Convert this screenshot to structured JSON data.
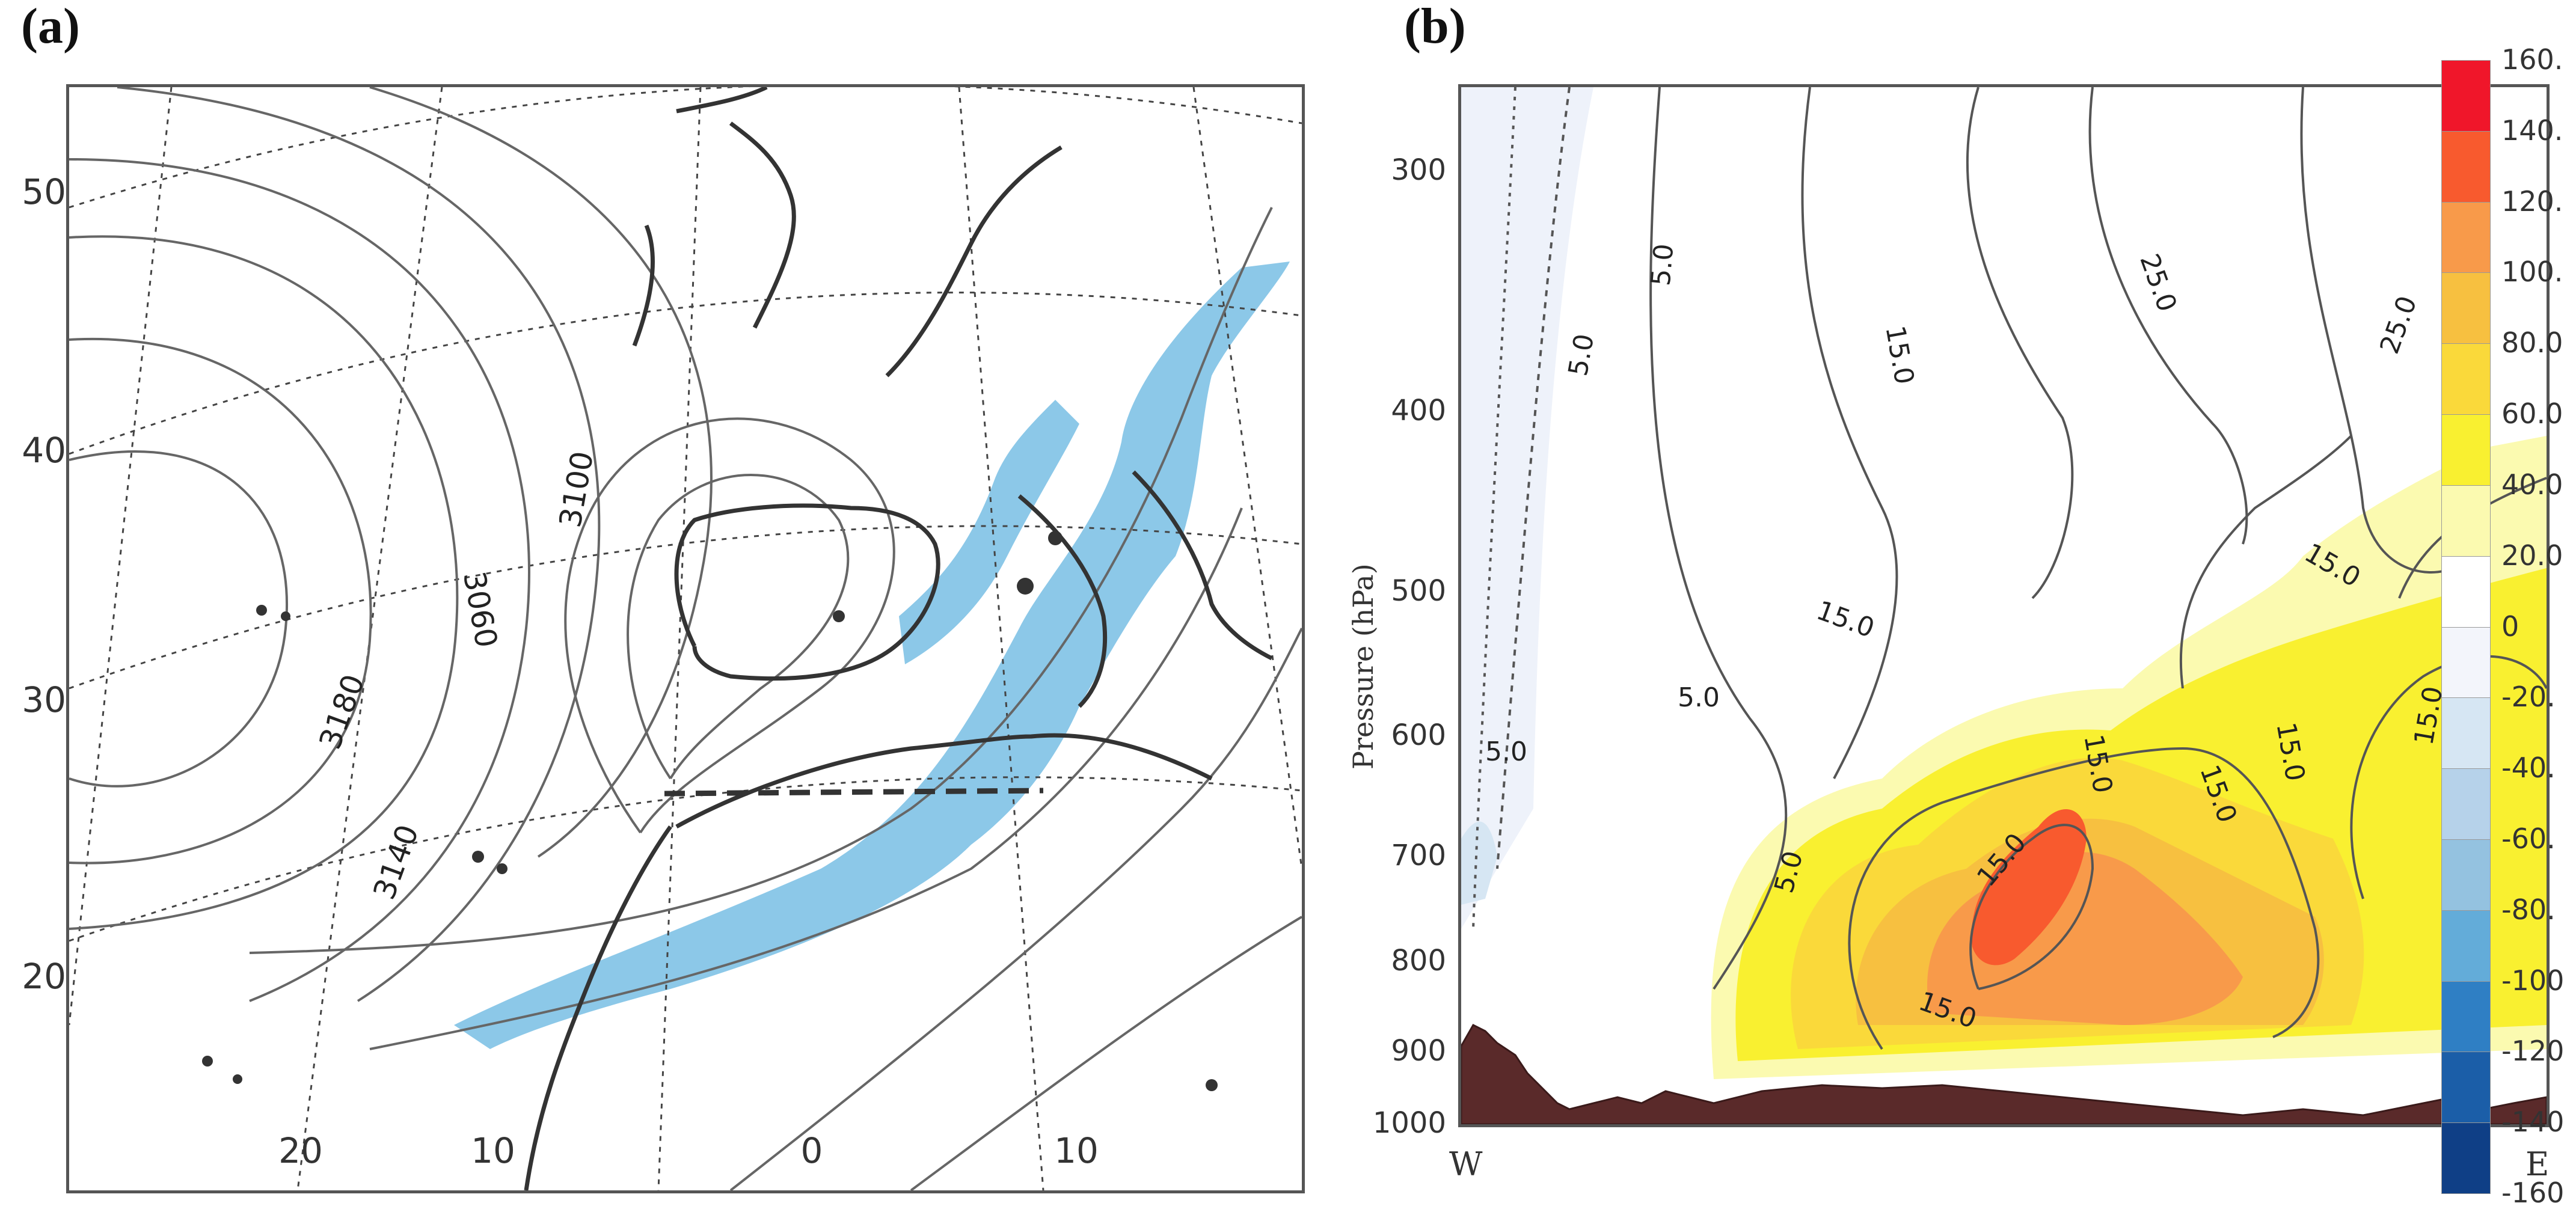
{
  "panels": {
    "a": {
      "label": "(a)",
      "lat_ticks": [
        "50",
        "40",
        "30",
        "20"
      ],
      "lon_ticks": [
        "20",
        "10",
        "0",
        "10"
      ],
      "contour_labels": [
        "3100",
        "3060",
        "3180",
        "3140"
      ],
      "shading_color": "#8cc8e8",
      "dashed_line_color": "#333333"
    },
    "b": {
      "label": "(b)",
      "ylabel": "Pressure (hPa)",
      "y_ticks": [
        "300",
        "400",
        "500",
        "600",
        "700",
        "800",
        "900",
        "1000"
      ],
      "x_ticks": [
        "W",
        "E"
      ],
      "contour_labels": [
        "5.0",
        "5.0",
        "15.0",
        "25.0",
        "25.0",
        "15.0",
        "15.0",
        "5.0",
        "5.0",
        "15.0",
        "15.0",
        "15.0",
        "15.0",
        "5.0",
        "15.0",
        "15.0"
      ],
      "terrain_color": "#5a2a2a"
    }
  },
  "colorbar": {
    "ticks": [
      "160.",
      "140.",
      "120.",
      "100.",
      "80.0",
      "60.0",
      "40.0",
      "20.0",
      "0",
      "-20.",
      "-40.",
      "-60.",
      "-80.",
      "-100",
      "-120",
      "-140",
      "-160"
    ],
    "colors": [
      "#f0162a",
      "#f85a2e",
      "#f89a4a",
      "#f7c040",
      "#fad93a",
      "#f9f030",
      "#fbfab0",
      "#ffffff",
      "#f3f5fb",
      "#d6e6f3",
      "#b6d2ea",
      "#94c2e0",
      "#63acd9",
      "#2f7fc4",
      "#1b5ea8",
      "#0f3f86"
    ]
  }
}
